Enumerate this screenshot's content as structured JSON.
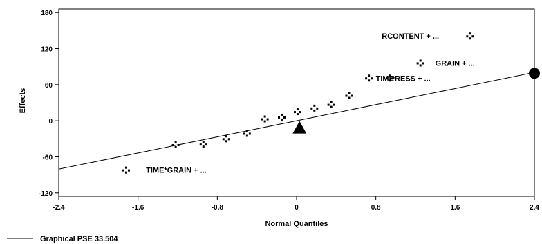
{
  "chart_data": {
    "type": "scatter",
    "xlabel": "Normal Quantiles",
    "ylabel": "Effects",
    "xlim": [
      -2.4,
      2.4
    ],
    "ylim": [
      -126,
      186
    ],
    "x_ticks": [
      -2.4,
      -1.6,
      -0.8,
      0,
      0.8,
      1.6,
      2.4
    ],
    "x_tick_labels": [
      "-2.4",
      "-1.6",
      "-0.8",
      "0",
      "0.8",
      "1.6",
      "2.4"
    ],
    "y_ticks": [
      -120,
      -60,
      0,
      60,
      120,
      180
    ],
    "y_tick_labels": [
      "-120",
      "-60",
      "0",
      "60",
      "120",
      "180"
    ],
    "grid": false,
    "points": [
      {
        "x": -1.72,
        "y": -82
      },
      {
        "x": -1.22,
        "y": -40
      },
      {
        "x": -0.94,
        "y": -39
      },
      {
        "x": -0.71,
        "y": -30
      },
      {
        "x": -0.5,
        "y": -21
      },
      {
        "x": -0.32,
        "y": 3
      },
      {
        "x": -0.15,
        "y": 6
      },
      {
        "x": 0.01,
        "y": 15
      },
      {
        "x": 0.18,
        "y": 21
      },
      {
        "x": 0.35,
        "y": 27
      },
      {
        "x": 0.53,
        "y": 42
      },
      {
        "x": 0.73,
        "y": 71
      },
      {
        "x": 0.94,
        "y": 71
      },
      {
        "x": 1.25,
        "y": 96
      },
      {
        "x": 1.75,
        "y": 141
      }
    ],
    "annotations": [
      {
        "text": "TIME*GRAIN + ...",
        "x": -1.52,
        "y": -82
      },
      {
        "text": "TIME",
        "x": 0.8,
        "y": 71
      },
      {
        "text": "PRESS + ...",
        "x": 0.94,
        "y": 71
      },
      {
        "text": "GRAIN + ...",
        "x": 1.4,
        "y": 96
      },
      {
        "text": "RCONTENT + ...",
        "x": 0.86,
        "y": 141
      }
    ],
    "reference_line": {
      "x": [
        -2.4,
        2.4
      ],
      "y": [
        -80.4,
        80.4
      ]
    },
    "triangle_marker": {
      "x": 0.03,
      "y": -12
    },
    "circle_marker": {
      "x": 2.4,
      "y": 79
    },
    "legend": {
      "label": "Graphical PSE 33.504",
      "position": "bottom-left"
    }
  }
}
